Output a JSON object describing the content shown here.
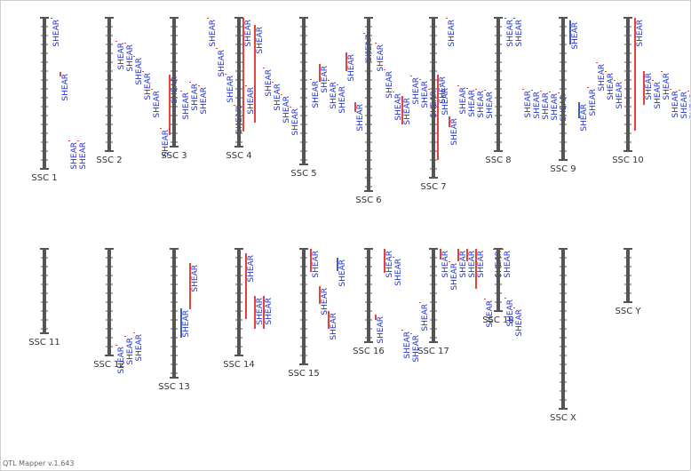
{
  "app": {
    "version": "QTL Mapper v.1.643"
  },
  "colors": {
    "chromosome": "#555555",
    "qtl_red": "#e8403a",
    "qtl_blue": "#3a5fcd",
    "label": "#2233cc"
  },
  "chart_data": {
    "type": "chromosome-map",
    "trait": "SHEAR",
    "chromosomes": [
      {
        "name": "SSC 1",
        "length": 170,
        "qtls": [
          {
            "label": "SHEAR",
            "start": 0,
            "end": 0,
            "color": "blue"
          },
          {
            "label": "SHEAR",
            "start": 61,
            "end": 66,
            "color": "red"
          },
          {
            "label": "SHEAR",
            "start": 138,
            "end": 139,
            "color": "red"
          },
          {
            "label": "SHEAR",
            "start": 138,
            "end": 139,
            "color": "red"
          }
        ]
      },
      {
        "name": "SSC 2",
        "length": 150,
        "qtls": [
          {
            "label": "SHEAR",
            "start": 26,
            "end": 27,
            "color": "red"
          },
          {
            "label": "SHEAR",
            "start": 28,
            "end": 29,
            "color": "red"
          },
          {
            "label": "SHEAR",
            "start": 43,
            "end": 44,
            "color": "red"
          },
          {
            "label": "SHEAR",
            "start": 60,
            "end": 61,
            "color": "red"
          },
          {
            "label": "SHEAR",
            "start": 80,
            "end": 81,
            "color": "red"
          },
          {
            "label": "SHEAR",
            "start": 124,
            "end": 125,
            "color": "red"
          },
          {
            "label": "SHEAR",
            "start": 64,
            "end": 132,
            "color": "red"
          }
        ]
      },
      {
        "name": "SSC 3",
        "length": 145,
        "qtls": [
          {
            "label": "SHEAR",
            "start": 82,
            "end": 83,
            "color": "red"
          },
          {
            "label": "SHEAR",
            "start": 72,
            "end": 73,
            "color": "red"
          },
          {
            "label": "SHEAR",
            "start": 76,
            "end": 77,
            "color": "red"
          },
          {
            "label": "SHEAR",
            "start": 0,
            "end": 1,
            "color": "red"
          },
          {
            "label": "SHEAR",
            "start": 34,
            "end": 35,
            "color": "red"
          },
          {
            "label": "SHEAR",
            "start": 63,
            "end": 64,
            "color": "red"
          },
          {
            "label": "SHEAR",
            "start": 98,
            "end": 99,
            "color": "red"
          },
          {
            "label": "SHEAR",
            "start": 0,
            "end": 128,
            "color": "red"
          }
        ]
      },
      {
        "name": "SSC 4",
        "length": 145,
        "qtls": [
          {
            "label": "SHEAR",
            "start": 76,
            "end": 77,
            "color": "red"
          },
          {
            "label": "SHEAR",
            "start": 8,
            "end": 118,
            "color": "red"
          },
          {
            "label": "SHEAR",
            "start": 56,
            "end": 57,
            "color": "red"
          },
          {
            "label": "SHEAR",
            "start": 72,
            "end": 73,
            "color": "red"
          },
          {
            "label": "SHEAR",
            "start": 86,
            "end": 87,
            "color": "red"
          },
          {
            "label": "SHEAR",
            "start": 100,
            "end": 101,
            "color": "red"
          }
        ]
      },
      {
        "name": "SSC 5",
        "length": 165,
        "qtls": [
          {
            "label": "SHEAR",
            "start": 69,
            "end": 70,
            "color": "red"
          },
          {
            "label": "SHEAR",
            "start": 52,
            "end": 72,
            "color": "red"
          },
          {
            "label": "SHEAR",
            "start": 70,
            "end": 71,
            "color": "red"
          },
          {
            "label": "SHEAR",
            "start": 75,
            "end": 76,
            "color": "red"
          },
          {
            "label": "SHEAR",
            "start": 39,
            "end": 60,
            "color": "red"
          },
          {
            "label": "SHEAR",
            "start": 95,
            "end": 106,
            "color": "red"
          },
          {
            "label": "SHEAR",
            "start": 17,
            "end": 18,
            "color": "red"
          }
        ]
      },
      {
        "name": "SSC 6",
        "length": 195,
        "qtls": [
          {
            "label": "SHEAR",
            "start": 28,
            "end": 29,
            "color": "red"
          },
          {
            "label": "SHEAR",
            "start": 58,
            "end": 59,
            "color": "red"
          },
          {
            "label": "SHEAR",
            "start": 83,
            "end": 84,
            "color": "red"
          },
          {
            "label": "SHEAR",
            "start": 88,
            "end": 120,
            "color": "red"
          },
          {
            "label": "SHEAR",
            "start": 65,
            "end": 66,
            "color": "red"
          },
          {
            "label": "SHEAR",
            "start": 69,
            "end": 70,
            "color": "red"
          },
          {
            "label": "SHEAR",
            "start": 80,
            "end": 81,
            "color": "red"
          },
          {
            "label": "SHEAR",
            "start": 64,
            "end": 160,
            "color": "red"
          },
          {
            "label": "SHEAR",
            "start": 0,
            "end": 1,
            "color": "red"
          }
        ]
      },
      {
        "name": "SSC 7",
        "length": 180,
        "qtls": [
          {
            "label": "SHEAR",
            "start": 77,
            "end": 78,
            "color": "red"
          },
          {
            "label": "SHEAR",
            "start": 111,
            "end": 123,
            "color": "red"
          },
          {
            "label": "SHEAR",
            "start": 76,
            "end": 77,
            "color": "red"
          },
          {
            "label": "SHEAR",
            "start": 79,
            "end": 80,
            "color": "red"
          },
          {
            "label": "SHEAR",
            "start": 80,
            "end": 81,
            "color": "red"
          },
          {
            "label": "SHEAR",
            "start": 81,
            "end": 82,
            "color": "red"
          }
        ]
      },
      {
        "name": "SSC 8",
        "length": 150,
        "qtls": [
          {
            "label": "SHEAR",
            "start": 0,
            "end": 0,
            "color": "blue"
          },
          {
            "label": "SHEAR",
            "start": 0,
            "end": 0,
            "color": "blue"
          },
          {
            "label": "SHEAR",
            "start": 80,
            "end": 81,
            "color": "red"
          },
          {
            "label": "SHEAR",
            "start": 81,
            "end": 82,
            "color": "red"
          },
          {
            "label": "SHEAR",
            "start": 82,
            "end": 83,
            "color": "red"
          },
          {
            "label": "SHEAR",
            "start": 83,
            "end": 84,
            "color": "red"
          },
          {
            "label": "SHEAR",
            "start": 84,
            "end": 85,
            "color": "red"
          }
        ]
      },
      {
        "name": "SSC 9",
        "length": 160,
        "qtls": [
          {
            "label": "SHEAR",
            "start": 3,
            "end": 30,
            "color": "blue"
          },
          {
            "label": "SHEAR",
            "start": 95,
            "end": 113,
            "color": "blue"
          },
          {
            "label": "SHEAR",
            "start": 78,
            "end": 79,
            "color": "red"
          },
          {
            "label": "SHEAR",
            "start": 50,
            "end": 51,
            "color": "red"
          },
          {
            "label": "SHEAR",
            "start": 60,
            "end": 61,
            "color": "red"
          },
          {
            "label": "SHEAR",
            "start": 70,
            "end": 71,
            "color": "red"
          }
        ]
      },
      {
        "name": "SSC 10",
        "length": 150,
        "qtls": [
          {
            "label": "SHEAR",
            "start": 0,
            "end": 127,
            "color": "red"
          },
          {
            "label": "SHEAR",
            "start": 60,
            "end": 98,
            "color": "red"
          },
          {
            "label": "SHEAR",
            "start": 70,
            "end": 71,
            "color": "red"
          },
          {
            "label": "SHEAR",
            "start": 60,
            "end": 61,
            "color": "red"
          },
          {
            "label": "SHEAR",
            "start": 80,
            "end": 81,
            "color": "red"
          },
          {
            "label": "SHEAR",
            "start": 81,
            "end": 82,
            "color": "red"
          },
          {
            "label": "SHEAR",
            "start": 82,
            "end": 83,
            "color": "red"
          }
        ]
      },
      {
        "name": "SSC 11",
        "length": 95,
        "qtls": []
      },
      {
        "name": "SSC 12",
        "length": 120,
        "qtls": [
          {
            "label": "SHEAR",
            "start": 108,
            "end": 109,
            "color": "red"
          },
          {
            "label": "SHEAR",
            "start": 98,
            "end": 99,
            "color": "red"
          },
          {
            "label": "SHEAR",
            "start": 94,
            "end": 95,
            "color": "red"
          }
        ]
      },
      {
        "name": "SSC 13",
        "length": 145,
        "qtls": [
          {
            "label": "SHEAR",
            "start": 67,
            "end": 100,
            "color": "blue"
          },
          {
            "label": "SHEAR",
            "start": 16,
            "end": 68,
            "color": "red"
          }
        ]
      },
      {
        "name": "SSC 14",
        "length": 120,
        "qtls": [
          {
            "label": "SHEAR",
            "start": 5,
            "end": 79,
            "color": "red"
          },
          {
            "label": "SHEAR",
            "start": 53,
            "end": 90,
            "color": "red"
          },
          {
            "label": "SHEAR",
            "start": 53,
            "end": 90,
            "color": "red"
          }
        ]
      },
      {
        "name": "SSC 15",
        "length": 130,
        "qtls": [
          {
            "label": "SHEAR",
            "start": 0,
            "end": 26,
            "color": "red"
          },
          {
            "label": "SHEAR",
            "start": 42,
            "end": 62,
            "color": "red"
          },
          {
            "label": "SHEAR",
            "start": 70,
            "end": 90,
            "color": "red"
          },
          {
            "label": "SHEAR",
            "start": 10,
            "end": 25,
            "color": "blue"
          }
        ]
      },
      {
        "name": "SSC 16",
        "length": 105,
        "qtls": [
          {
            "label": "SHEAR",
            "start": 74,
            "end": 80,
            "color": "red"
          },
          {
            "label": "SHEAR",
            "start": 0,
            "end": 27,
            "color": "red"
          },
          {
            "label": "SHEAR",
            "start": 9,
            "end": 10,
            "color": "red"
          },
          {
            "label": "SHEAR",
            "start": 91,
            "end": 92,
            "color": "red"
          },
          {
            "label": "SHEAR",
            "start": 95,
            "end": 96,
            "color": "red"
          },
          {
            "label": "SHEAR",
            "start": 60,
            "end": 61,
            "color": "red"
          }
        ]
      },
      {
        "name": "SSC 17",
        "length": 105,
        "qtls": [
          {
            "label": "SHEAR",
            "start": 0,
            "end": 12,
            "color": "red"
          },
          {
            "label": "SHEAR",
            "start": 14,
            "end": 15,
            "color": "red"
          },
          {
            "label": "SHEAR",
            "start": 0,
            "end": 14,
            "color": "red"
          },
          {
            "label": "SHEAR",
            "start": 0,
            "end": 14,
            "color": "red"
          },
          {
            "label": "SHEAR",
            "start": 0,
            "end": 45,
            "color": "red"
          },
          {
            "label": "SHEAR",
            "start": 56,
            "end": 57,
            "color": "red"
          },
          {
            "label": "SHEAR",
            "start": 0,
            "end": 1,
            "color": "red"
          },
          {
            "label": "SHEAR",
            "start": 0,
            "end": 1,
            "color": "red"
          }
        ]
      },
      {
        "name": "SSC 18",
        "length": 70,
        "qtls": [
          {
            "label": "SHEAR",
            "start": 55,
            "end": 56,
            "color": "red"
          },
          {
            "label": "SHEAR",
            "start": 66,
            "end": 67,
            "color": "red"
          }
        ]
      },
      {
        "name": "SSC X",
        "length": 180,
        "qtls": []
      },
      {
        "name": "SSC Y",
        "length": 60,
        "qtls": []
      }
    ]
  }
}
